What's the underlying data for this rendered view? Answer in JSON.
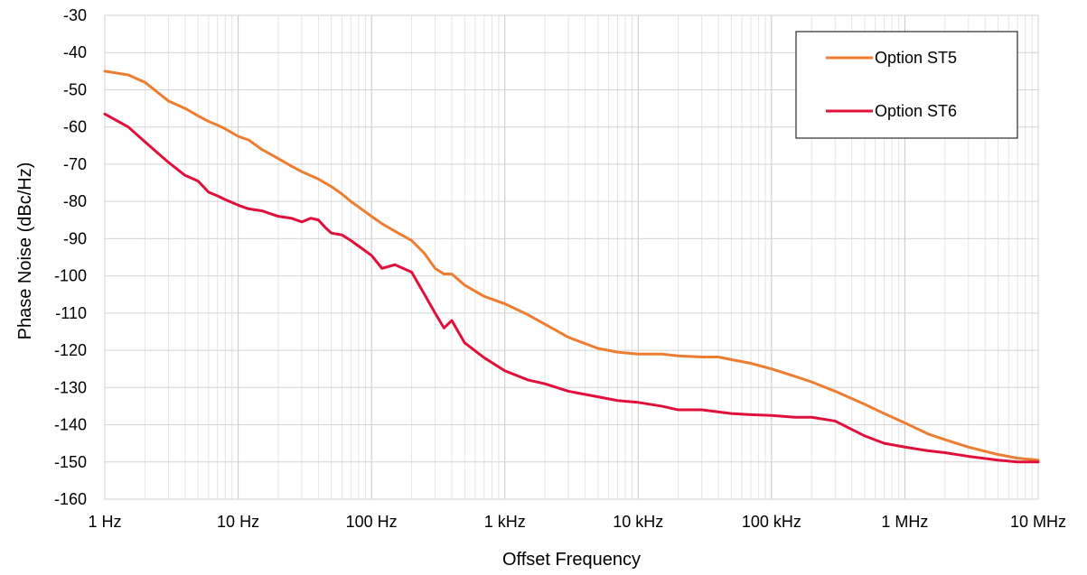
{
  "chart_data": {
    "type": "line",
    "title": "",
    "xlabel": "Offset Frequency",
    "ylabel": "Phase Noise (dBc/Hz)",
    "x_scale": "log",
    "x_unit": "Hz",
    "xlim": [
      1,
      10000000
    ],
    "ylim": [
      -160,
      -30
    ],
    "grid": true,
    "legend_position": "top-right",
    "x_ticks": [
      {
        "value": 1,
        "label": "1 Hz"
      },
      {
        "value": 10,
        "label": "10 Hz"
      },
      {
        "value": 100,
        "label": "100 Hz"
      },
      {
        "value": 1000,
        "label": "1 kHz"
      },
      {
        "value": 10000,
        "label": "10 kHz"
      },
      {
        "value": 100000,
        "label": "100 kHz"
      },
      {
        "value": 1000000,
        "label": "1 MHz"
      },
      {
        "value": 10000000,
        "label": "10 MHz"
      }
    ],
    "y_ticks": [
      -30,
      -40,
      -50,
      -60,
      -70,
      -80,
      -90,
      -100,
      -110,
      -120,
      -130,
      -140,
      -150,
      -160
    ],
    "series": [
      {
        "name": "Option ST5",
        "color": "#ED7D31",
        "x": [
          1,
          1.5,
          2,
          3,
          4,
          5,
          6,
          7,
          8,
          10,
          12,
          15,
          20,
          25,
          30,
          40,
          50,
          60,
          70,
          80,
          100,
          120,
          150,
          200,
          250,
          300,
          350,
          400,
          500,
          700,
          1000,
          1500,
          2000,
          3000,
          5000,
          7000,
          10000,
          15000,
          20000,
          30000,
          40000,
          50000,
          70000,
          100000,
          150000,
          200000,
          300000,
          500000,
          700000,
          1000000,
          1500000,
          2000000,
          3000000,
          5000000,
          7000000,
          10000000
        ],
        "y": [
          -45,
          -46,
          -48,
          -53,
          -55,
          -57,
          -58.5,
          -59.5,
          -60.5,
          -62.5,
          -63.5,
          -66,
          -68.5,
          -70.5,
          -72,
          -74,
          -76,
          -78,
          -80,
          -81.5,
          -84,
          -86,
          -88,
          -90.5,
          -94,
          -98,
          -99.5,
          -99.5,
          -102.5,
          -105.5,
          -107.5,
          -110.5,
          -113,
          -116.5,
          -119.5,
          -120.5,
          -121,
          -121,
          -121.5,
          -121.8,
          -121.8,
          -122.5,
          -123.5,
          -125,
          -127,
          -128.5,
          -131,
          -134.5,
          -137,
          -139.5,
          -142.5,
          -144,
          -146,
          -148,
          -149,
          -149.5
        ]
      },
      {
        "name": "Option ST6",
        "color": "#E0103A",
        "x": [
          1,
          1.5,
          2,
          3,
          4,
          5,
          6,
          7,
          8,
          10,
          12,
          15,
          20,
          25,
          30,
          35,
          40,
          45,
          50,
          60,
          70,
          80,
          100,
          120,
          150,
          200,
          250,
          300,
          350,
          400,
          500,
          700,
          1000,
          1500,
          2000,
          3000,
          5000,
          7000,
          10000,
          15000,
          20000,
          30000,
          50000,
          70000,
          100000,
          150000,
          200000,
          300000,
          500000,
          700000,
          1000000,
          1500000,
          2000000,
          3000000,
          5000000,
          7000000,
          10000000
        ],
        "y": [
          -56.5,
          -60,
          -64,
          -69.5,
          -73,
          -74.5,
          -77.5,
          -78.5,
          -79.5,
          -81,
          -82,
          -82.5,
          -84,
          -84.5,
          -85.5,
          -84.5,
          -85,
          -87,
          -88.5,
          -89,
          -90.5,
          -92,
          -94.5,
          -98,
          -97,
          -99,
          -105,
          -110,
          -114,
          -112,
          -118,
          -122,
          -125.5,
          -128,
          -129,
          -131,
          -132.5,
          -133.5,
          -134,
          -135,
          -136,
          -136,
          -137,
          -137.3,
          -137.5,
          -138,
          -138,
          -139,
          -143,
          -145,
          -146,
          -147,
          -147.5,
          -148.5,
          -149.5,
          -150,
          -150
        ]
      }
    ]
  }
}
